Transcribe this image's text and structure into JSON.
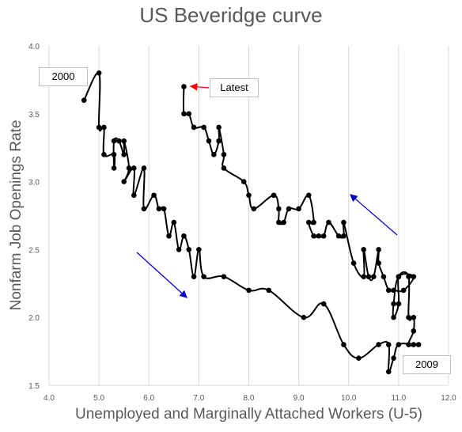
{
  "chart_data": {
    "type": "line",
    "title": "US Beveridge curve",
    "xlabel": "Unemployed and Marginally Attached Workers (U-5)",
    "ylabel": "Nonfarm Job Openings Rate",
    "xlim": [
      4.0,
      12.0
    ],
    "ylim": [
      1.5,
      4.0
    ],
    "xticks": [
      "4.0",
      "5.0",
      "6.0",
      "7.0",
      "8.0",
      "9.0",
      "10.0",
      "11.0",
      "12.0"
    ],
    "yticks": [
      "1.5",
      "2.0",
      "2.5",
      "3.0",
      "3.5",
      "4.0"
    ],
    "grid": "vertical",
    "series": [
      {
        "points": [
          [
            4.7,
            3.6
          ],
          [
            5.0,
            3.8
          ],
          [
            5.0,
            3.4
          ],
          [
            5.1,
            3.4
          ],
          [
            5.1,
            3.2
          ],
          [
            5.3,
            3.2
          ],
          [
            5.3,
            3.1
          ],
          [
            5.3,
            3.3
          ],
          [
            5.4,
            3.3
          ],
          [
            5.5,
            3.2
          ],
          [
            5.5,
            3.3
          ],
          [
            5.6,
            3.1
          ],
          [
            5.5,
            3.0
          ],
          [
            5.7,
            3.1
          ],
          [
            5.7,
            2.9
          ],
          [
            5.9,
            3.1
          ],
          [
            5.9,
            2.8
          ],
          [
            6.1,
            2.9
          ],
          [
            6.2,
            2.8
          ],
          [
            6.3,
            2.8
          ],
          [
            6.4,
            2.6
          ],
          [
            6.5,
            2.7
          ],
          [
            6.6,
            2.5
          ],
          [
            6.7,
            2.6
          ],
          [
            6.8,
            2.5
          ],
          [
            6.9,
            2.3
          ],
          [
            7.0,
            2.5
          ],
          [
            7.1,
            2.3
          ],
          [
            7.5,
            2.3
          ],
          [
            8.0,
            2.2
          ],
          [
            8.4,
            2.2
          ],
          [
            9.1,
            2.0
          ],
          [
            9.5,
            2.1
          ],
          [
            9.9,
            1.8
          ],
          [
            10.2,
            1.7
          ],
          [
            10.6,
            1.8
          ],
          [
            10.8,
            1.8
          ],
          [
            10.8,
            1.6
          ],
          [
            10.9,
            1.7
          ],
          [
            11.0,
            1.8
          ],
          [
            11.3,
            1.8
          ],
          [
            11.4,
            1.8
          ],
          [
            11.2,
            1.8
          ],
          [
            11.3,
            1.9
          ],
          [
            11.3,
            2.0
          ],
          [
            11.2,
            2.0
          ],
          [
            11.2,
            2.3
          ],
          [
            11.0,
            2.3
          ],
          [
            11.0,
            2.1
          ],
          [
            10.9,
            2.0
          ],
          [
            10.9,
            2.1
          ],
          [
            11.0,
            2.3
          ],
          [
            11.3,
            2.3
          ],
          [
            11.1,
            2.2
          ],
          [
            10.9,
            2.2
          ],
          [
            10.8,
            2.2
          ],
          [
            10.7,
            2.3
          ],
          [
            10.6,
            2.4
          ],
          [
            10.6,
            2.5
          ],
          [
            10.5,
            2.3
          ],
          [
            10.4,
            2.3
          ],
          [
            10.3,
            2.5
          ],
          [
            10.3,
            2.3
          ],
          [
            10.1,
            2.4
          ],
          [
            9.9,
            2.7
          ],
          [
            9.9,
            2.6
          ],
          [
            9.8,
            2.6
          ],
          [
            9.6,
            2.7
          ],
          [
            9.5,
            2.6
          ],
          [
            9.4,
            2.6
          ],
          [
            9.3,
            2.6
          ],
          [
            9.2,
            2.7
          ],
          [
            9.3,
            2.7
          ],
          [
            9.2,
            2.9
          ],
          [
            9.0,
            2.8
          ],
          [
            8.8,
            2.8
          ],
          [
            8.7,
            2.7
          ],
          [
            8.6,
            2.7
          ],
          [
            8.6,
            2.8
          ],
          [
            8.5,
            2.9
          ],
          [
            8.1,
            2.8
          ],
          [
            8.0,
            2.9
          ],
          [
            7.9,
            3.0
          ],
          [
            7.5,
            3.1
          ],
          [
            7.5,
            3.2
          ],
          [
            7.4,
            3.4
          ],
          [
            7.4,
            3.3
          ],
          [
            7.3,
            3.2
          ],
          [
            7.2,
            3.3
          ],
          [
            7.1,
            3.4
          ],
          [
            6.9,
            3.4
          ],
          [
            6.8,
            3.5
          ],
          [
            6.7,
            3.5
          ],
          [
            6.7,
            3.7
          ]
        ]
      }
    ],
    "annotations": [
      {
        "text": "2000"
      },
      {
        "text": "Latest"
      },
      {
        "text": "2009"
      }
    ],
    "colors": {
      "line": "#000000",
      "marker": "#000000",
      "latest_arrow": "#ff0000",
      "trend_arrow": "#0000cc",
      "grid": "#d9d9d9"
    }
  }
}
